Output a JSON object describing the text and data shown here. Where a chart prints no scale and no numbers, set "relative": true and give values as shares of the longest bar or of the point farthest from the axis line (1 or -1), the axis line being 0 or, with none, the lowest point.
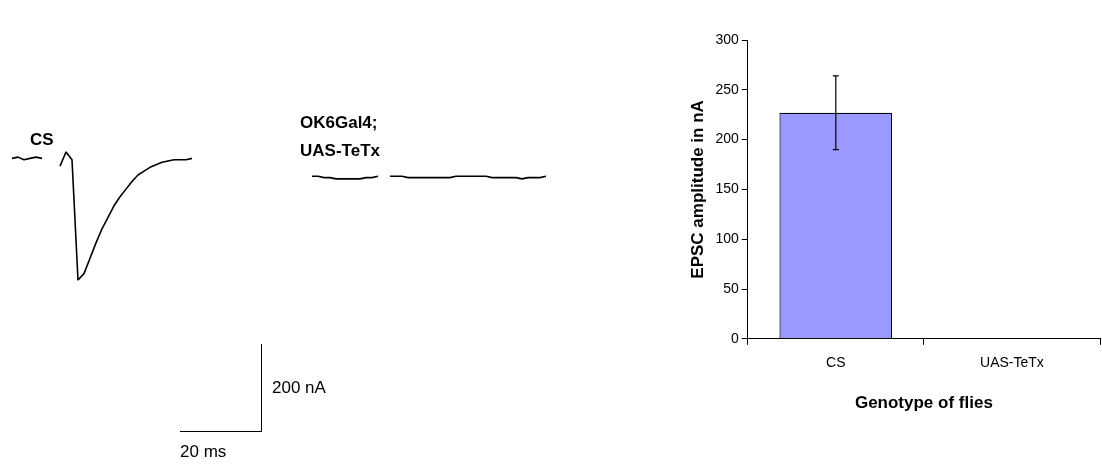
{
  "chart_data": [
    {
      "type": "line",
      "relative": true,
      "categories": [
        null,
        null,
        null,
        null,
        null,
        null,
        null,
        null,
        null,
        null,
        null,
        null,
        null,
        null,
        null,
        null,
        null,
        null,
        null,
        null,
        null,
        null,
        null,
        null,
        null,
        null,
        null,
        null,
        null,
        null,
        null,
        null,
        null,
        null,
        null,
        null,
        null,
        null,
        null,
        null,
        null,
        null,
        null,
        null,
        null,
        null,
        null,
        null,
        null,
        null,
        null,
        null,
        null,
        null,
        null,
        null,
        null,
        null,
        null,
        null,
        null,
        null,
        null,
        null,
        null,
        null,
        null,
        null,
        null,
        null,
        null,
        null,
        null,
        null,
        null,
        null,
        null,
        null,
        null,
        null,
        null,
        null,
        null,
        null,
        null,
        null,
        null,
        null,
        null,
        null
      ],
      "series": [
        {
          "color": "#000000",
          "values": [
            0.95,
            0.96,
            0.94,
            0.95,
            0.96,
            0.95,
            null,
            null,
            null,
            null,
            null,
            null,
            null,
            null,
            null,
            null,
            null,
            null,
            null,
            null,
            null,
            null,
            null,
            null,
            null,
            null,
            null,
            null,
            null,
            null,
            null,
            null,
            null,
            null,
            null,
            null,
            null,
            null,
            null,
            null,
            null,
            null,
            null,
            null,
            null,
            null,
            null,
            null,
            null,
            null,
            null,
            null,
            null,
            null,
            null,
            null,
            null,
            null,
            null,
            null,
            null,
            null,
            null,
            null,
            null,
            null,
            null,
            null,
            null,
            null,
            null,
            null,
            null,
            null,
            null,
            null,
            null,
            null,
            null,
            null,
            null,
            null,
            null,
            null,
            null,
            null,
            null,
            null,
            null,
            null
          ]
        },
        {
          "name": "CS",
          "color": "#000000",
          "values": [
            null,
            null,
            null,
            null,
            null,
            null,
            null,
            null,
            0.89,
            1.0,
            0.94,
            0,
            0.05,
            0.17,
            0.29,
            0.4,
            0.49,
            0.58,
            0.65,
            0.71,
            0.77,
            0.82,
            0.85,
            0.88,
            0.9,
            0.92,
            0.93,
            0.94,
            0.94,
            0.94,
            0.95,
            null,
            null,
            null,
            null,
            null,
            null,
            null,
            null,
            null,
            null,
            null,
            null,
            null,
            null,
            null,
            null,
            null,
            null,
            null,
            null,
            null,
            null,
            null,
            null,
            null,
            null,
            null,
            null,
            null,
            null,
            null,
            null,
            null,
            null,
            null,
            null,
            null,
            null,
            null,
            null,
            null,
            null,
            null,
            null,
            null,
            null,
            null,
            null,
            null,
            null,
            null,
            null,
            null,
            null,
            null,
            null,
            null,
            null,
            null
          ]
        },
        {
          "color": "#000000",
          "values": [
            null,
            null,
            null,
            null,
            null,
            null,
            null,
            null,
            null,
            null,
            null,
            null,
            null,
            null,
            null,
            null,
            null,
            null,
            null,
            null,
            null,
            null,
            null,
            null,
            null,
            null,
            null,
            null,
            null,
            null,
            null,
            null,
            null,
            null,
            null,
            null,
            null,
            null,
            null,
            null,
            null,
            null,
            null,
            null,
            null,
            null,
            null,
            null,
            null,
            null,
            0.81,
            0.81,
            0.8,
            0.8,
            0.79,
            0.79,
            0.79,
            0.79,
            0.79,
            0.8,
            0.8,
            0.81,
            null,
            null,
            null,
            null,
            null,
            null,
            null,
            null,
            null,
            null,
            null,
            null,
            null,
            null,
            null,
            null,
            null,
            null,
            null,
            null,
            null,
            null,
            null,
            null,
            null,
            null,
            null,
            null
          ]
        },
        {
          "name": "OK6Gal4;\nUAS-TeTx",
          "color": "#000000",
          "values": [
            null,
            null,
            null,
            null,
            null,
            null,
            null,
            null,
            null,
            null,
            null,
            null,
            null,
            null,
            null,
            null,
            null,
            null,
            null,
            null,
            null,
            null,
            null,
            null,
            null,
            null,
            null,
            null,
            null,
            null,
            null,
            null,
            null,
            null,
            null,
            null,
            null,
            null,
            null,
            null,
            null,
            null,
            null,
            null,
            null,
            null,
            null,
            null,
            null,
            null,
            null,
            null,
            null,
            null,
            null,
            null,
            null,
            null,
            null,
            null,
            null,
            null,
            null,
            0.81,
            0.81,
            0.81,
            0.8,
            0.8,
            0.8,
            0.8,
            0.8,
            0.8,
            0.8,
            0.8,
            0.81,
            0.81,
            0.81,
            0.81,
            0.81,
            0.81,
            0.8,
            0.8,
            0.8,
            0.8,
            0.8,
            0.79,
            0.8,
            0.8,
            0.8,
            0.81
          ]
        }
      ],
      "annotations": [
        "200 nA",
        "20 ms"
      ]
    },
    {
      "type": "bar",
      "categories": [
        "CS",
        "UAS-TeTx"
      ],
      "values": [
        227,
        0
      ],
      "color": "#9999ff",
      "errors": [
        [
          190,
          264
        ],
        null
      ],
      "ylim": [
        0,
        300
      ],
      "yticks": [
        0,
        50,
        100,
        150,
        200,
        250,
        300
      ],
      "xlabel": "Genotype of flies",
      "ylabel": "EPSC amplitude in nA",
      "grid": false,
      "legend": false
    }
  ]
}
